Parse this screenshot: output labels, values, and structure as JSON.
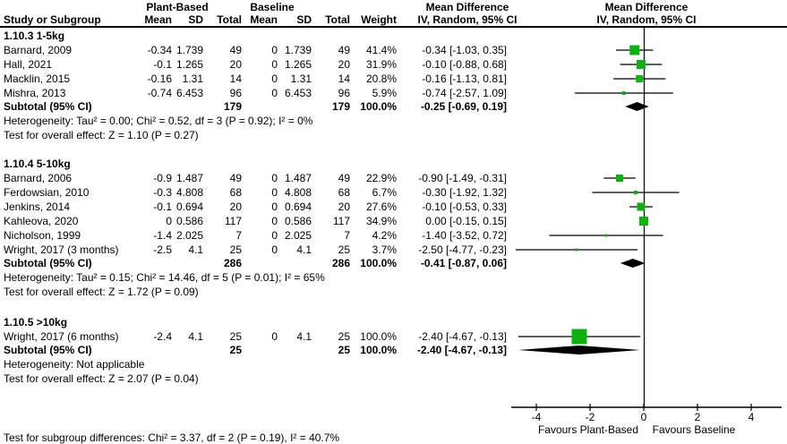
{
  "title_headers": {
    "study_or_subgroup": "Study or Subgroup",
    "plant_based": "Plant-Based",
    "baseline": "Baseline",
    "mean": "Mean",
    "sd": "SD",
    "total": "Total",
    "weight": "Weight",
    "mean_difference_col": "Mean Difference",
    "iv_random_col": "IV, Random, 95% CI",
    "mean_difference_plot": "Mean Difference",
    "iv_random_plot": "IV, Random, 95% CI"
  },
  "colors": {
    "marker_green": "#0cb30c",
    "line_black": "#000000"
  },
  "chart_data": {
    "type": "forest_plot",
    "effect_measure": "Mean Difference IV, Random, 95% CI",
    "x_axis": {
      "ticks": [
        -4,
        -2,
        0,
        2,
        4
      ],
      "range": [
        -4.95,
        5.1
      ],
      "favours_left": "Favours Plant-Based",
      "favours_right": "Favours Baseline"
    },
    "subgroups": [
      {
        "label": "1.10.3 1-5kg",
        "studies": [
          {
            "name": "Barnard, 2009",
            "mean1": "-0.34",
            "sd1": "1.739",
            "total1": "49",
            "mean2": "0",
            "sd2": "1.739",
            "total2": "49",
            "weight": "41.4%",
            "weight_pct": 41.4,
            "ci_text": "-0.34 [-1.03, 0.35]",
            "md": -0.34,
            "ci_lo": -1.03,
            "ci_hi": 0.35
          },
          {
            "name": "Hall, 2021",
            "mean1": "-0.1",
            "sd1": "1.265",
            "total1": "20",
            "mean2": "0",
            "sd2": "1.265",
            "total2": "20",
            "weight": "31.9%",
            "weight_pct": 31.9,
            "ci_text": "-0.10 [-0.88, 0.68]",
            "md": -0.1,
            "ci_lo": -0.88,
            "ci_hi": 0.68
          },
          {
            "name": "Macklin, 2015",
            "mean1": "-0.16",
            "sd1": "1.31",
            "total1": "14",
            "mean2": "0",
            "sd2": "1.31",
            "total2": "14",
            "weight": "20.8%",
            "weight_pct": 20.8,
            "ci_text": "-0.16 [-1.13, 0.81]",
            "md": -0.16,
            "ci_lo": -1.13,
            "ci_hi": 0.81
          },
          {
            "name": "Mishra, 2013",
            "mean1": "-0.74",
            "sd1": "6.453",
            "total1": "96",
            "mean2": "0",
            "sd2": "6.453",
            "total2": "96",
            "weight": "5.9%",
            "weight_pct": 5.9,
            "ci_text": "-0.74 [-2.57, 1.09]",
            "md": -0.74,
            "ci_lo": -2.57,
            "ci_hi": 1.09
          }
        ],
        "subtotal": {
          "label": "Subtotal (95% CI)",
          "total1": "179",
          "total2": "179",
          "weight": "100.0%",
          "ci_text": "-0.25 [-0.69, 0.19]",
          "md": -0.25,
          "ci_lo": -0.69,
          "ci_hi": 0.19
        },
        "heterogeneity": "Heterogeneity: Tau² = 0.00; Chi² = 0.52, df = 3 (P = 0.92); I² = 0%",
        "overall_effect": "Test for overall effect: Z = 1.10 (P = 0.27)"
      },
      {
        "label": "1.10.4 5-10kg",
        "studies": [
          {
            "name": "Barnard, 2006",
            "mean1": "-0.9",
            "sd1": "1.487",
            "total1": "49",
            "mean2": "0",
            "sd2": "1.487",
            "total2": "49",
            "weight": "22.9%",
            "weight_pct": 22.9,
            "ci_text": "-0.90 [-1.49, -0.31]",
            "md": -0.9,
            "ci_lo": -1.49,
            "ci_hi": -0.31
          },
          {
            "name": "Ferdowsian, 2010",
            "mean1": "-0.3",
            "sd1": "4.808",
            "total1": "68",
            "mean2": "0",
            "sd2": "4.808",
            "total2": "68",
            "weight": "6.7%",
            "weight_pct": 6.7,
            "ci_text": "-0.30 [-1.92, 1.32]",
            "md": -0.3,
            "ci_lo": -1.92,
            "ci_hi": 1.32
          },
          {
            "name": "Jenkins, 2014",
            "mean1": "-0.1",
            "sd1": "0.694",
            "total1": "20",
            "mean2": "0",
            "sd2": "0.694",
            "total2": "20",
            "weight": "27.6%",
            "weight_pct": 27.6,
            "ci_text": "-0.10 [-0.53, 0.33]",
            "md": -0.1,
            "ci_lo": -0.53,
            "ci_hi": 0.33
          },
          {
            "name": "Kahleova, 2020",
            "mean1": "0",
            "sd1": "0.586",
            "total1": "117",
            "mean2": "0",
            "sd2": "0.586",
            "total2": "117",
            "weight": "34.9%",
            "weight_pct": 34.9,
            "ci_text": "0.00 [-0.15, 0.15]",
            "md": 0,
            "ci_lo": -0.15,
            "ci_hi": 0.15
          },
          {
            "name": "Nicholson, 1999",
            "mean1": "-1.4",
            "sd1": "2.025",
            "total1": "7",
            "mean2": "0",
            "sd2": "2.025",
            "total2": "7",
            "weight": "4.2%",
            "weight_pct": 4.2,
            "ci_text": "-1.40 [-3.52, 0.72]",
            "md": -1.4,
            "ci_lo": -3.52,
            "ci_hi": 0.72
          },
          {
            "name": "Wright, 2017 (3 months)",
            "mean1": "-2.5",
            "sd1": "4.1",
            "total1": "25",
            "mean2": "0",
            "sd2": "4.1",
            "total2": "25",
            "weight": "3.7%",
            "weight_pct": 3.7,
            "ci_text": "-2.50 [-4.77, -0.23]",
            "md": -2.5,
            "ci_lo": -4.77,
            "ci_hi": -0.23
          }
        ],
        "subtotal": {
          "label": "Subtotal (95% CI)",
          "total1": "286",
          "total2": "286",
          "weight": "100.0%",
          "ci_text": "-0.41 [-0.87, 0.06]",
          "md": -0.41,
          "ci_lo": -0.87,
          "ci_hi": 0.06
        },
        "heterogeneity": "Heterogeneity: Tau² = 0.15; Chi² = 14.46, df = 5 (P = 0.01); I² = 65%",
        "overall_effect": "Test for overall effect: Z = 1.72 (P = 0.09)"
      },
      {
        "label": "1.10.5 >10kg",
        "studies": [
          {
            "name": "Wright, 2017 (6 months)",
            "mean1": "-2.4",
            "sd1": "4.1",
            "total1": "25",
            "mean2": "0",
            "sd2": "4.1",
            "total2": "25",
            "weight": "100.0%",
            "weight_pct": 100.0,
            "ci_text": "-2.40 [-4.67, -0.13]",
            "md": -2.4,
            "ci_lo": -4.67,
            "ci_hi": -0.13
          }
        ],
        "subtotal": {
          "label": "Subtotal (95% CI)",
          "total1": "25",
          "total2": "25",
          "weight": "100.0%",
          "ci_text": "-2.40 [-4.67, -0.13]",
          "md": -2.4,
          "ci_lo": -4.67,
          "ci_hi": -0.13
        },
        "heterogeneity": "Heterogeneity: Not applicable",
        "overall_effect": "Test for overall effect: Z = 2.07 (P = 0.04)"
      }
    ],
    "subgroup_difference": "Test for subgroup differences: Chi² = 3.37, df = 2 (P = 0.19), I² = 40.7%"
  }
}
